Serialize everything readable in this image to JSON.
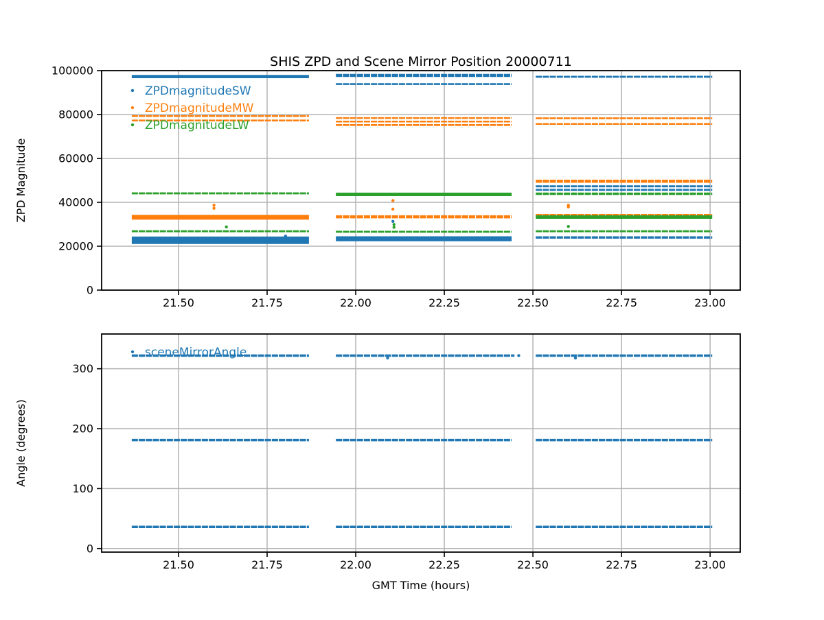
{
  "figure_title": "SHIS ZPD and Scene Mirror Position 20000711",
  "colors": {
    "series_blue": "#1f77b4",
    "series_orange": "#ff7f0e",
    "series_green": "#2ca02c",
    "grid": "#b3b3b3",
    "spine": "#000000"
  },
  "chart_data": [
    {
      "type": "scatter",
      "title": "SHIS ZPD and Scene Mirror Position 20000711",
      "xlabel": "",
      "ylabel": "ZPD Magnitude",
      "xlim": [
        21.283,
        23.085
      ],
      "ylim": [
        0,
        100000
      ],
      "grid": true,
      "legend_position": "upper-left",
      "xtick_values": [
        21.5,
        21.75,
        22.0,
        22.25,
        22.5,
        22.75,
        23.0
      ],
      "xtick_labels": [
        "21.50",
        "21.75",
        "22.00",
        "22.25",
        "22.50",
        "22.75",
        "23.00"
      ],
      "ytick_values": [
        0,
        20000,
        40000,
        60000,
        80000,
        100000
      ],
      "ytick_labels": [
        "0",
        "20000",
        "40000",
        "60000",
        "80000",
        "100000"
      ],
      "series": [
        {
          "name": "ZPDmagnitudeSW",
          "color": "#1f77b4",
          "bands": [
            [
              21.368,
              21.868,
              97300,
              1500
            ],
            [
              21.368,
              21.868,
              22700,
              3400
            ],
            [
              21.944,
              22.44,
              97800,
              1400
            ],
            [
              21.944,
              22.44,
              93900,
              800
            ],
            [
              21.944,
              22.44,
              23400,
              2300
            ],
            [
              22.508,
              23.006,
              97200,
              900
            ],
            [
              22.508,
              23.006,
              47300,
              900
            ],
            [
              22.508,
              23.006,
              45700,
              900
            ],
            [
              22.508,
              23.006,
              24000,
              1100
            ]
          ],
          "points": [
            [
              22.105,
              31300
            ],
            [
              21.802,
              24600
            ]
          ]
        },
        {
          "name": "ZPDmagnitudeMW",
          "color": "#ff7f0e",
          "bands": [
            [
              21.368,
              21.868,
              79300,
              800
            ],
            [
              21.368,
              21.868,
              77300,
              800
            ],
            [
              21.368,
              21.868,
              33200,
              2200
            ],
            [
              21.944,
              22.44,
              78400,
              800
            ],
            [
              21.944,
              22.44,
              76800,
              800
            ],
            [
              21.944,
              22.44,
              75200,
              800
            ],
            [
              21.944,
              22.44,
              33400,
              1400
            ],
            [
              22.508,
              23.006,
              78300,
              800
            ],
            [
              22.508,
              23.006,
              75700,
              800
            ],
            [
              22.508,
              23.006,
              49600,
              1400
            ],
            [
              22.508,
              23.006,
              34300,
              800
            ]
          ],
          "points": [
            [
              21.6,
              38700
            ],
            [
              21.6,
              37300
            ],
            [
              22.105,
              40800
            ],
            [
              22.105,
              36900
            ],
            [
              22.6,
              38700
            ],
            [
              22.6,
              37900
            ]
          ]
        },
        {
          "name": "ZPDmagnitudeLW",
          "color": "#2ca02c",
          "bands": [
            [
              21.368,
              21.868,
              44100,
              900
            ],
            [
              21.368,
              21.868,
              26800,
              900
            ],
            [
              21.944,
              22.44,
              43600,
              1600
            ],
            [
              21.944,
              22.44,
              26600,
              900
            ],
            [
              22.508,
              23.006,
              43900,
              1100
            ],
            [
              22.508,
              23.006,
              33300,
              1600
            ],
            [
              22.508,
              23.006,
              26800,
              900
            ]
          ],
          "points": [
            [
              21.635,
              28800
            ],
            [
              22.108,
              29900
            ],
            [
              22.108,
              28600
            ],
            [
              22.6,
              29000
            ]
          ]
        }
      ]
    },
    {
      "type": "scatter",
      "title": "",
      "xlabel": "GMT Time (hours)",
      "ylabel": "Angle (degrees)",
      "xlim": [
        21.283,
        23.085
      ],
      "ylim": [
        -6,
        358
      ],
      "grid": true,
      "legend_position": "upper-left",
      "xtick_values": [
        21.5,
        21.75,
        22.0,
        22.25,
        22.5,
        22.75,
        23.0
      ],
      "xtick_labels": [
        "21.50",
        "21.75",
        "22.00",
        "22.25",
        "22.50",
        "22.75",
        "23.00"
      ],
      "ytick_values": [
        0,
        100,
        200,
        300
      ],
      "ytick_labels": [
        "0",
        "100",
        "200",
        "300"
      ],
      "series": [
        {
          "name": "sceneMirrorAngle",
          "color": "#1f77b4",
          "bands": [
            [
              21.368,
              21.868,
              322,
              4
            ],
            [
              21.944,
              22.448,
              322,
              4
            ],
            [
              22.508,
              23.006,
              322,
              4
            ],
            [
              21.368,
              21.868,
              181,
              4
            ],
            [
              21.944,
              22.44,
              181,
              4
            ],
            [
              22.508,
              23.006,
              181,
              4
            ],
            [
              21.368,
              21.868,
              36,
              4
            ],
            [
              21.944,
              22.44,
              36,
              4
            ],
            [
              22.508,
              23.006,
              36,
              4
            ]
          ],
          "points": [
            [
              22.46,
              322
            ],
            [
              22.09,
              318
            ],
            [
              22.62,
              318
            ]
          ]
        }
      ]
    }
  ]
}
